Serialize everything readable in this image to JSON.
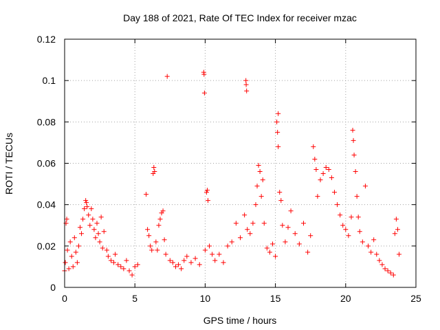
{
  "chart_data": {
    "type": "scatter",
    "title": "Day 188 of 2021, Rate Of TEC Index for receiver mzac",
    "xlabel": "GPS time / hours",
    "ylabel": "ROTI / TECUs",
    "xlim": [
      0,
      25
    ],
    "ylim": [
      0,
      0.12
    ],
    "grid": true,
    "marker": "+",
    "color": "#ff0000",
    "x_ticks": [
      0,
      5,
      10,
      15,
      20,
      25
    ],
    "x_tick_labels": [
      "0",
      "5",
      "10",
      "15",
      "20",
      "25"
    ],
    "y_ticks": [
      0,
      0.02,
      0.04,
      0.06,
      0.08,
      0.1,
      0.12
    ],
    "y_tick_labels": [
      "0",
      "0.02",
      "0.04",
      "0.06",
      "0.08",
      "0.1",
      "0.12"
    ],
    "series": [
      {
        "name": "ROTI",
        "notes": "Dense cloud of ROTI samples; representative points read from the plot",
        "points": [
          [
            0.0,
            0.008
          ],
          [
            0.05,
            0.012
          ],
          [
            0.1,
            0.031
          ],
          [
            0.15,
            0.033
          ],
          [
            0.2,
            0.018
          ],
          [
            0.3,
            0.009
          ],
          [
            0.4,
            0.022
          ],
          [
            0.5,
            0.015
          ],
          [
            0.6,
            0.01
          ],
          [
            0.7,
            0.024
          ],
          [
            0.8,
            0.017
          ],
          [
            0.9,
            0.012
          ],
          [
            1.0,
            0.02
          ],
          [
            1.1,
            0.029
          ],
          [
            1.2,
            0.026
          ],
          [
            1.3,
            0.033
          ],
          [
            1.4,
            0.038
          ],
          [
            1.5,
            0.042
          ],
          [
            1.55,
            0.041
          ],
          [
            1.6,
            0.039
          ],
          [
            1.7,
            0.035
          ],
          [
            1.8,
            0.03
          ],
          [
            1.9,
            0.038
          ],
          [
            2.0,
            0.033
          ],
          [
            2.1,
            0.028
          ],
          [
            2.2,
            0.024
          ],
          [
            2.3,
            0.031
          ],
          [
            2.4,
            0.026
          ],
          [
            2.5,
            0.022
          ],
          [
            2.6,
            0.034
          ],
          [
            2.7,
            0.019
          ],
          [
            2.8,
            0.027
          ],
          [
            3.0,
            0.018
          ],
          [
            3.1,
            0.015
          ],
          [
            3.3,
            0.013
          ],
          [
            3.5,
            0.012
          ],
          [
            3.6,
            0.016
          ],
          [
            3.8,
            0.011
          ],
          [
            4.0,
            0.01
          ],
          [
            4.2,
            0.009
          ],
          [
            4.4,
            0.013
          ],
          [
            4.6,
            0.008
          ],
          [
            4.8,
            0.006
          ],
          [
            5.0,
            0.01
          ],
          [
            5.2,
            0.011
          ],
          [
            5.8,
            0.045
          ],
          [
            5.9,
            0.028
          ],
          [
            6.0,
            0.025
          ],
          [
            6.1,
            0.02
          ],
          [
            6.2,
            0.018
          ],
          [
            6.3,
            0.055
          ],
          [
            6.35,
            0.058
          ],
          [
            6.4,
            0.056
          ],
          [
            6.5,
            0.022
          ],
          [
            6.6,
            0.018
          ],
          [
            6.7,
            0.03
          ],
          [
            6.8,
            0.033
          ],
          [
            6.9,
            0.036
          ],
          [
            7.0,
            0.037
          ],
          [
            7.1,
            0.023
          ],
          [
            7.2,
            0.016
          ],
          [
            7.3,
            0.102
          ],
          [
            7.5,
            0.013
          ],
          [
            7.7,
            0.012
          ],
          [
            7.9,
            0.01
          ],
          [
            8.1,
            0.011
          ],
          [
            8.3,
            0.009
          ],
          [
            8.5,
            0.013
          ],
          [
            8.7,
            0.015
          ],
          [
            9.0,
            0.012
          ],
          [
            9.3,
            0.014
          ],
          [
            9.6,
            0.011
          ],
          [
            9.9,
            0.104
          ],
          [
            9.92,
            0.103
          ],
          [
            9.95,
            0.094
          ],
          [
            10.0,
            0.018
          ],
          [
            10.1,
            0.046
          ],
          [
            10.15,
            0.047
          ],
          [
            10.2,
            0.042
          ],
          [
            10.3,
            0.02
          ],
          [
            10.5,
            0.016
          ],
          [
            10.7,
            0.013
          ],
          [
            11.0,
            0.016
          ],
          [
            11.3,
            0.012
          ],
          [
            11.6,
            0.02
          ],
          [
            11.9,
            0.022
          ],
          [
            12.2,
            0.031
          ],
          [
            12.5,
            0.024
          ],
          [
            12.8,
            0.035
          ],
          [
            12.9,
            0.1
          ],
          [
            12.92,
            0.098
          ],
          [
            12.95,
            0.095
          ],
          [
            13.0,
            0.028
          ],
          [
            13.2,
            0.026
          ],
          [
            13.4,
            0.031
          ],
          [
            13.6,
            0.04
          ],
          [
            13.7,
            0.049
          ],
          [
            13.8,
            0.059
          ],
          [
            13.9,
            0.056
          ],
          [
            14.0,
            0.044
          ],
          [
            14.1,
            0.052
          ],
          [
            14.2,
            0.031
          ],
          [
            14.4,
            0.019
          ],
          [
            14.6,
            0.017
          ],
          [
            14.8,
            0.021
          ],
          [
            15.0,
            0.015
          ],
          [
            15.1,
            0.08
          ],
          [
            15.2,
            0.084
          ],
          [
            15.15,
            0.075
          ],
          [
            15.2,
            0.068
          ],
          [
            15.3,
            0.046
          ],
          [
            15.4,
            0.042
          ],
          [
            15.5,
            0.03
          ],
          [
            15.7,
            0.022
          ],
          [
            15.9,
            0.029
          ],
          [
            16.1,
            0.037
          ],
          [
            16.4,
            0.026
          ],
          [
            16.7,
            0.021
          ],
          [
            17.0,
            0.031
          ],
          [
            17.3,
            0.017
          ],
          [
            17.5,
            0.025
          ],
          [
            17.7,
            0.068
          ],
          [
            17.8,
            0.062
          ],
          [
            17.9,
            0.057
          ],
          [
            18.0,
            0.044
          ],
          [
            18.2,
            0.052
          ],
          [
            18.4,
            0.055
          ],
          [
            18.6,
            0.058
          ],
          [
            18.8,
            0.057
          ],
          [
            19.0,
            0.053
          ],
          [
            19.2,
            0.046
          ],
          [
            19.4,
            0.04
          ],
          [
            19.6,
            0.035
          ],
          [
            19.8,
            0.03
          ],
          [
            20.0,
            0.028
          ],
          [
            20.2,
            0.025
          ],
          [
            20.4,
            0.034
          ],
          [
            20.5,
            0.076
          ],
          [
            20.55,
            0.071
          ],
          [
            20.6,
            0.064
          ],
          [
            20.7,
            0.056
          ],
          [
            20.8,
            0.044
          ],
          [
            20.9,
            0.034
          ],
          [
            21.0,
            0.027
          ],
          [
            21.2,
            0.022
          ],
          [
            21.4,
            0.049
          ],
          [
            21.6,
            0.02
          ],
          [
            21.8,
            0.017
          ],
          [
            22.0,
            0.023
          ],
          [
            22.2,
            0.016
          ],
          [
            22.4,
            0.013
          ],
          [
            22.6,
            0.011
          ],
          [
            22.8,
            0.009
          ],
          [
            23.0,
            0.008
          ],
          [
            23.2,
            0.007
          ],
          [
            23.4,
            0.006
          ],
          [
            23.5,
            0.026
          ],
          [
            23.6,
            0.033
          ],
          [
            23.7,
            0.028
          ],
          [
            23.8,
            0.016
          ]
        ]
      }
    ]
  }
}
